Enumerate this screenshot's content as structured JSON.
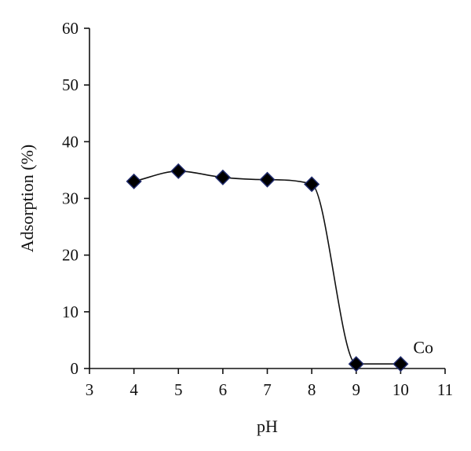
{
  "chart_data": {
    "type": "scatter",
    "xlabel": "pH",
    "ylabel": "Adsorption (%)",
    "xlim": [
      3,
      11
    ],
    "ylim": [
      0,
      60
    ],
    "xticks": [
      3,
      4,
      5,
      6,
      7,
      8,
      9,
      10,
      11
    ],
    "yticks": [
      0,
      10,
      20,
      30,
      40,
      50,
      60
    ],
    "grid": false,
    "series": [
      {
        "name": "Co",
        "x": [
          4,
          5,
          6,
          7,
          8,
          9,
          10
        ],
        "y": [
          33,
          34.8,
          33.7,
          33.3,
          32.5,
          0.8,
          0.8
        ],
        "marker": "diamond",
        "marker_fill": "#000000",
        "marker_edge": "#1f2a6b",
        "line_color": "#111111"
      }
    ],
    "annotations": [
      {
        "text": "Co",
        "x": 10.6,
        "y": 3.5
      }
    ]
  }
}
